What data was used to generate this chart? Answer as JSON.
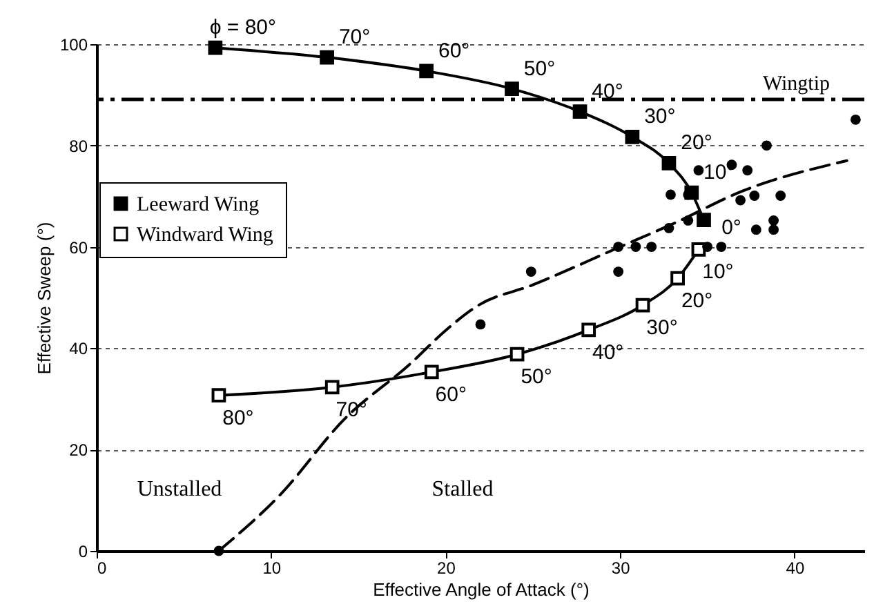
{
  "chart_data": {
    "type": "line",
    "xlabel": "Effective Angle of Attack (°)",
    "ylabel": "Effective Sweep (°)",
    "xlim": [
      0,
      44
    ],
    "xticks": [
      0,
      10,
      20,
      30,
      40
    ],
    "ylim": [
      0,
      100
    ],
    "yticks": [
      0,
      20,
      40,
      60,
      80,
      100
    ],
    "grid": "y",
    "legend": "left",
    "series": [
      {
        "name": "Leeward Wing",
        "marker": "square",
        "color": "#000000",
        "x": [
          6.8,
          13.2,
          18.9,
          23.8,
          27.7,
          30.7,
          32.8,
          34.1,
          34.8
        ],
        "values": [
          99.3,
          97.4,
          94.7,
          91.2,
          86.7,
          81.7,
          76.5,
          70.7,
          65.3
        ]
      },
      {
        "name": "Windward Wing",
        "marker": "square",
        "color": "#000000",
        "x": [
          34.5,
          33.3,
          31.3,
          28.2,
          24.1,
          19.2,
          13.5,
          7.0
        ],
        "values": [
          59.5,
          53.8,
          48.5,
          43.6,
          38.8,
          35.3,
          32.3,
          30.7
        ]
      },
      {
        "type": "scatter",
        "marker": "circle",
        "color": "#000000",
        "x": [
          7.0,
          22.0,
          24.9,
          29.9,
          29.9,
          30.9,
          31.8,
          35.0,
          35.8,
          32.8,
          33.9,
          37.8,
          38.8,
          38.8,
          32.9,
          33.9,
          36.9,
          37.7,
          39.2,
          34.5,
          36.4,
          37.3,
          38.4,
          43.5
        ],
        "values": [
          0,
          44.7,
          55.1,
          55.1,
          60,
          60,
          60,
          60,
          60,
          63.7,
          65.2,
          63.4,
          65.2,
          63.4,
          70.3,
          70.3,
          69.2,
          70.1,
          70.1,
          75.1,
          76.2,
          75.1,
          80,
          85.1
        ]
      },
      {
        "marker": "none",
        "line_style": "dashed",
        "color": "#000000",
        "x": [
          7.0,
          10.5,
          14.2,
          18.0,
          20.0,
          21.8,
          25.0,
          30.0,
          33.0,
          37.0,
          43.0
        ],
        "values": [
          0,
          11,
          26,
          37,
          43.5,
          48.3,
          52.5,
          60,
          64.5,
          71,
          77
        ]
      }
    ],
    "ref_lines": [
      {
        "axis": "y",
        "value": 89.1,
        "label": "Wingtip",
        "line_style": "dashed",
        "color": "#000000"
      }
    ],
    "annotations": [
      {
        "text": "ϕ = 80°",
        "x": 6.8,
        "y": 99.3
      },
      {
        "text": "70°",
        "x": 13.2,
        "y": 97.4
      },
      {
        "text": "60°",
        "x": 18.9,
        "y": 94.7
      },
      {
        "text": "50°",
        "x": 23.8,
        "y": 91.2
      },
      {
        "text": "40°",
        "x": 27.7,
        "y": 86.7
      },
      {
        "text": "30°",
        "x": 30.7,
        "y": 81.7
      },
      {
        "text": "20°",
        "x": 32.8,
        "y": 76.5
      },
      {
        "text": "10°",
        "x": 34.1,
        "y": 70.7
      },
      {
        "text": "0°",
        "x": 34.8,
        "y": 65.3
      },
      {
        "text": "10°",
        "x": 34.5,
        "y": 59.5
      },
      {
        "text": "20°",
        "x": 33.3,
        "y": 53.8
      },
      {
        "text": "30°",
        "x": 31.3,
        "y": 48.5
      },
      {
        "text": "40°",
        "x": 28.2,
        "y": 43.6
      },
      {
        "text": "50°",
        "x": 24.1,
        "y": 38.8
      },
      {
        "text": "60°",
        "x": 19.2,
        "y": 35.3
      },
      {
        "text": "70°",
        "x": 13.5,
        "y": 32.3
      },
      {
        "text": "80°",
        "x": 7.0,
        "y": 30.7
      },
      "Unstalled",
      "Stalled"
    ]
  }
}
